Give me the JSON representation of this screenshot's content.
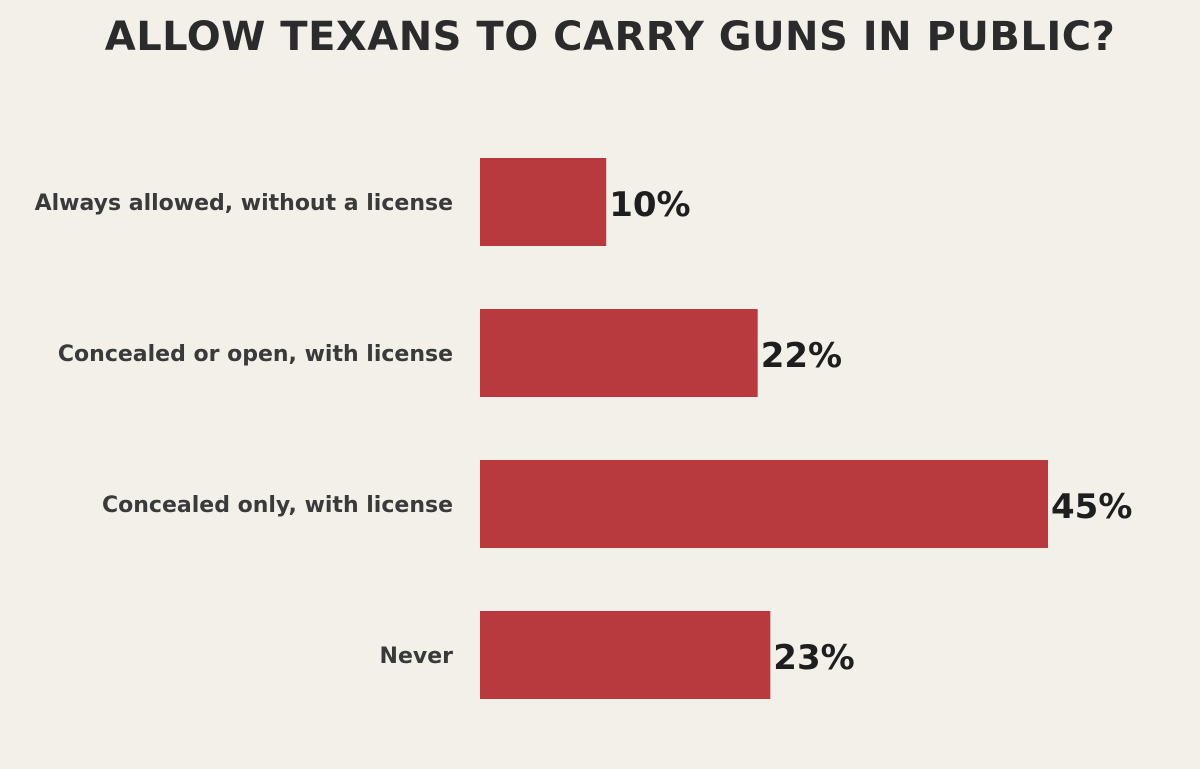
{
  "chart_data": {
    "type": "bar",
    "orientation": "horizontal",
    "title": "ALLOW TEXANS TO CARRY GUNS IN PUBLIC?",
    "categories": [
      "Always allowed, without a license",
      "Concealed or open, with license",
      "Concealed only, with license",
      "Never"
    ],
    "values": [
      10,
      22,
      45,
      23
    ],
    "value_labels": [
      "10%",
      "22%",
      "45%",
      "23%"
    ],
    "unit": "%",
    "xlim": [
      0,
      45
    ],
    "grid": false,
    "bar_color": "#b8393e",
    "background_color": "#f3f0ea"
  }
}
